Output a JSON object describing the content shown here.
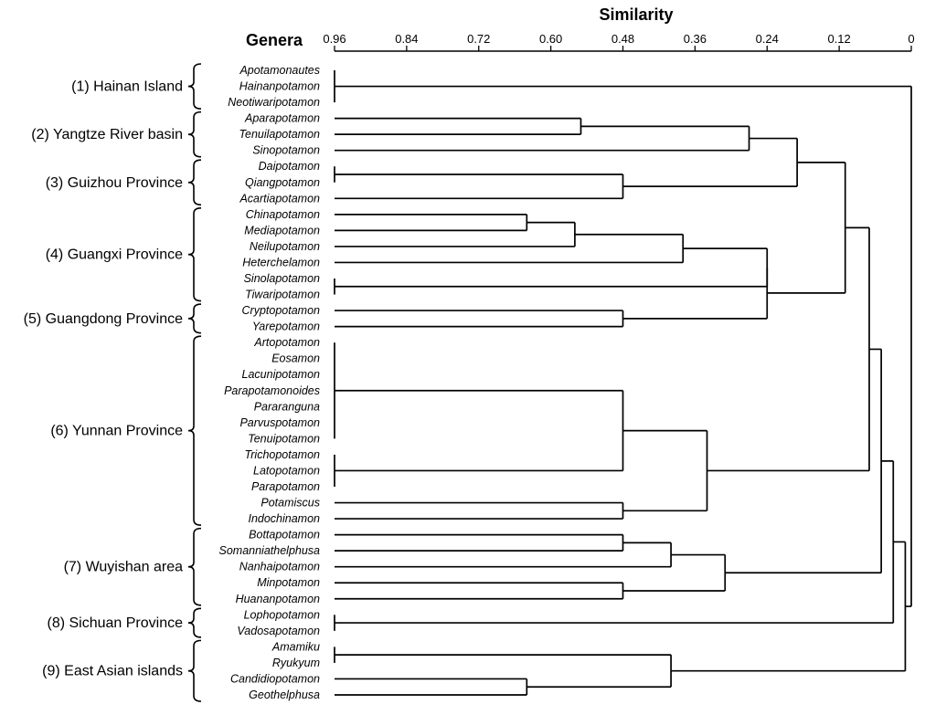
{
  "chart_data": {
    "type": "dendrogram",
    "title": "Similarity",
    "ylabel": "Genera",
    "xlim": [
      0.96,
      0
    ],
    "x_ticks": [
      "0.96",
      "0.84",
      "0.72",
      "0.60",
      "0.48",
      "0.36",
      "0.24",
      "0.12",
      "0"
    ],
    "leaves": [
      "Apotamonautes",
      "Hainanpotamon",
      "Neotiwaripotamon",
      "Aparapotamon",
      "Tenuilapotamon",
      "Sinopotamon",
      "Daipotamon",
      "Qiangpotamon",
      "Acartiapotamon",
      "Chinapotamon",
      "Mediapotamon",
      "Neilupotamon",
      "Heterchelamon",
      "Sinolapotamon",
      "Tiwaripotamon",
      "Cryptopotamon",
      "Yarepotamon",
      "Artopotamon",
      "Eosamon",
      "Lacunipotamon",
      "Parapotamonoides",
      "Pararanguna",
      "Parvuspotamon",
      "Tenuipotamon",
      "Trichopotamon",
      "Latopotamon",
      "Parapotamon",
      "Potamiscus",
      "Indochinamon",
      "Bottapotamon",
      "Somanniathelphusa",
      "Nanhaipotamon",
      "Minpotamon",
      "Huananpotamon",
      "Lophopotamon",
      "Vadosapotamon",
      "Amamiku",
      "Ryukyum",
      "Candidiopotamon",
      "Geothelphusa"
    ],
    "regions": [
      {
        "label": "(1) Hainan Island",
        "first": 0,
        "last": 2
      },
      {
        "label": "(2) Yangtze River basin",
        "first": 3,
        "last": 5
      },
      {
        "label": "(3) Guizhou Province",
        "first": 6,
        "last": 8
      },
      {
        "label": "(4) Guangxi Province",
        "first": 9,
        "last": 14
      },
      {
        "label": "(5) Guangdong Province",
        "first": 15,
        "last": 16
      },
      {
        "label": "(6) Yunnan Province",
        "first": 17,
        "last": 28
      },
      {
        "label": "(7) Wuyishan area",
        "first": 29,
        "last": 33
      },
      {
        "label": "(8) Sichuan Province",
        "first": 34,
        "last": 35
      },
      {
        "label": "(9) East Asian islands",
        "first": 36,
        "last": 39
      }
    ],
    "merges": [
      {
        "children": [
          "L0",
          "L1",
          "L2"
        ],
        "similarity": 0.96
      },
      {
        "children": [
          "L3",
          "L4"
        ],
        "similarity": 0.55
      },
      {
        "children": [
          "M1",
          "L5"
        ],
        "similarity": 0.27
      },
      {
        "children": [
          "L6",
          "L7"
        ],
        "similarity": 0.96
      },
      {
        "children": [
          "M3",
          "L8"
        ],
        "similarity": 0.48
      },
      {
        "children": [
          "M2",
          "M4"
        ],
        "similarity": 0.19
      },
      {
        "children": [
          "L9",
          "L10"
        ],
        "similarity": 0.64
      },
      {
        "children": [
          "M6",
          "L11"
        ],
        "similarity": 0.56
      },
      {
        "children": [
          "M7",
          "L12"
        ],
        "similarity": 0.38
      },
      {
        "children": [
          "L13",
          "L14"
        ],
        "similarity": 0.96
      },
      {
        "children": [
          "M8",
          "M9"
        ],
        "similarity": 0.24
      },
      {
        "children": [
          "L15",
          "L16"
        ],
        "similarity": 0.48
      },
      {
        "children": [
          "M10",
          "M11"
        ],
        "similarity": 0.24
      },
      {
        "children": [
          "M5",
          "M12"
        ],
        "similarity": 0.11
      },
      {
        "children": [
          "L17",
          "L18",
          "L19",
          "L20",
          "L21",
          "L22",
          "L23"
        ],
        "similarity": 0.96
      },
      {
        "children": [
          "L24",
          "L25",
          "L26"
        ],
        "similarity": 0.96
      },
      {
        "children": [
          "M14",
          "M15"
        ],
        "similarity": 0.48
      },
      {
        "children": [
          "L27",
          "L28"
        ],
        "similarity": 0.48
      },
      {
        "children": [
          "M16",
          "M17"
        ],
        "similarity": 0.34
      },
      {
        "children": [
          "M13",
          "M18"
        ],
        "similarity": 0.07
      },
      {
        "children": [
          "L29",
          "L30"
        ],
        "similarity": 0.48
      },
      {
        "children": [
          "M20",
          "L31"
        ],
        "similarity": 0.4
      },
      {
        "children": [
          "L32",
          "L33"
        ],
        "similarity": 0.48
      },
      {
        "children": [
          "M21",
          "M22"
        ],
        "similarity": 0.31
      },
      {
        "children": [
          "M19",
          "M23"
        ],
        "similarity": 0.05
      },
      {
        "children": [
          "L34",
          "L35"
        ],
        "similarity": 0.96
      },
      {
        "children": [
          "M24",
          "M25"
        ],
        "similarity": 0.03
      },
      {
        "children": [
          "L36",
          "L37"
        ],
        "similarity": 0.96
      },
      {
        "children": [
          "L38",
          "L39"
        ],
        "similarity": 0.64
      },
      {
        "children": [
          "M27",
          "M28"
        ],
        "similarity": 0.4
      },
      {
        "children": [
          "M26",
          "M29"
        ],
        "similarity": 0.01
      },
      {
        "children": [
          "M0",
          "M30"
        ],
        "similarity": 0.0
      }
    ]
  }
}
